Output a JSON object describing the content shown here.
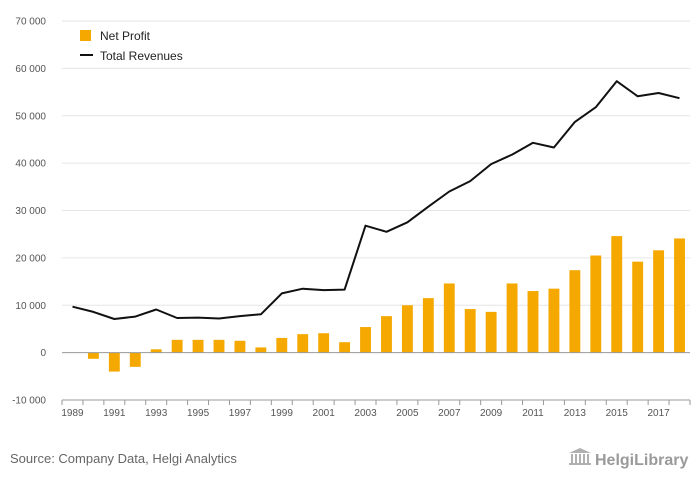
{
  "chart_data": {
    "type": "bar",
    "categories": [
      "1989",
      "1990",
      "1991",
      "1992",
      "1993",
      "1994",
      "1995",
      "1996",
      "1997",
      "1998",
      "1999",
      "2000",
      "2001",
      "2002",
      "2003",
      "2004",
      "2005",
      "2006",
      "2007",
      "2008",
      "2009",
      "2010",
      "2011",
      "2012",
      "2013",
      "2014",
      "2015",
      "2016",
      "2017",
      "2018"
    ],
    "x_tick_labels": [
      "1989",
      "1991",
      "1993",
      "1995",
      "1997",
      "1999",
      "2001",
      "2003",
      "2005",
      "2007",
      "2009",
      "2011",
      "2013",
      "2015",
      "2017"
    ],
    "series": [
      {
        "name": "Net Profit",
        "type": "bar",
        "color": "#f5a800",
        "values": [
          0,
          -1300,
          -4000,
          -3000,
          700,
          2700,
          2700,
          2700,
          2500,
          1100,
          3100,
          3900,
          4100,
          2200,
          5400,
          7700,
          10000,
          11500,
          14600,
          9200,
          8600,
          14600,
          13000,
          13500,
          17400,
          20500,
          24600,
          19200,
          21600,
          24100
        ]
      },
      {
        "name": "Total Revenues",
        "type": "line",
        "color": "#111111",
        "values": [
          9700,
          8600,
          7100,
          7600,
          9100,
          7300,
          7400,
          7200,
          7700,
          8100,
          12500,
          13500,
          13200,
          13300,
          26800,
          25500,
          27500,
          30800,
          34000,
          36200,
          39800,
          41800,
          44300,
          43300,
          48700,
          51800,
          57300,
          54100,
          54800,
          53700
        ]
      }
    ],
    "y_ticks": [
      -10000,
      0,
      10000,
      20000,
      30000,
      40000,
      50000,
      60000,
      70000
    ],
    "y_tick_labels": [
      "-10 000",
      "0",
      "10 000",
      "20 000",
      "30 000",
      "40 000",
      "50 000",
      "60 000",
      "70 000"
    ],
    "ylim": [
      -10000,
      70000
    ],
    "grid": true,
    "legend_position": "top-left",
    "xlabel": "",
    "ylabel": "",
    "title": ""
  },
  "footer": {
    "source": "Source: Company Data, Helgi Analytics",
    "brand": "HelgiLibrary"
  },
  "colors": {
    "grid": "#e6e6e6",
    "axis": "#999999"
  }
}
